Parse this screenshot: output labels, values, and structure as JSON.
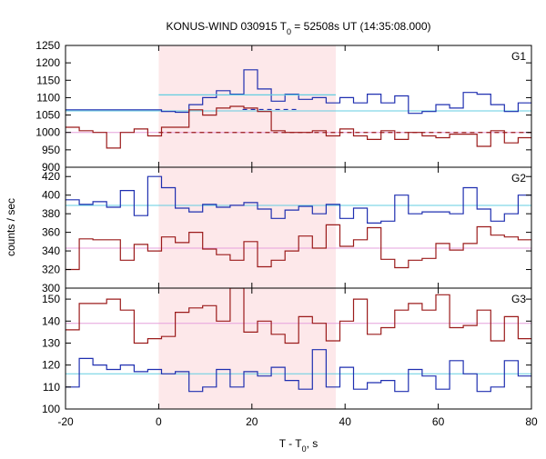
{
  "chart_data": {
    "type": "line",
    "title": {
      "main": "KONUS-WIND 030915 T",
      "sub": "0",
      "rest": " = 52508s UT (14:35:08.000)"
    },
    "xlabel": {
      "main": "T - T",
      "sub": "0",
      "rest": ", s"
    },
    "ylabel": "counts / sec",
    "xlim": [
      -20,
      80
    ],
    "x_ticks": [
      -20,
      0,
      20,
      40,
      60,
      80
    ],
    "bin_width": 2.944,
    "bin_start": -20,
    "shaded_interval": {
      "from": 0,
      "to": 38,
      "color": "#fde8ea"
    },
    "colors": {
      "blue": "#1f2fb0",
      "red": "#9b1b1b",
      "cyan": "#63cde0",
      "pink": "#e6a0dc"
    },
    "panels": [
      {
        "label": "G1",
        "ylim": [
          900,
          1250
        ],
        "y_ticks": [
          900,
          950,
          1000,
          1050,
          1100,
          1150,
          1200,
          1250
        ],
        "series": [
          {
            "color": "blue",
            "values": [
              1065,
              1065,
              1065,
              1065,
              1065,
              1065,
              1065,
              1060,
              1058,
              1080,
              1100,
              1120,
              1110,
              1180,
              1125,
              1090,
              1110,
              1095,
              1100,
              1085,
              1100,
              1085,
              1110,
              1085,
              1105,
              1055,
              1060,
              1080,
              1070,
              1115,
              1110,
              1080,
              1060,
              1085,
              1065
            ]
          },
          {
            "color": "red",
            "values": [
              1015,
              1005,
              1000,
              955,
              1000,
              1010,
              990,
              1015,
              1015,
              1065,
              1050,
              1070,
              1075,
              1070,
              1060,
              1005,
              1000,
              1000,
              1005,
              990,
              1010,
              990,
              980,
              1005,
              980,
              1000,
              990,
              985,
              995,
              995,
              960,
              1005,
              970,
              985,
              990
            ]
          }
        ],
        "bg_levels": [
          {
            "color": "cyan",
            "y": 1062,
            "from": -20,
            "to": 80
          },
          {
            "color": "pink",
            "y": 1000,
            "from": -20,
            "to": 80
          }
        ],
        "fit_levels": [
          {
            "color": "cyan",
            "y": 1108,
            "from": 0,
            "to": 38,
            "dash": false
          },
          {
            "color": "blue",
            "y": 1066,
            "from": 18,
            "to": 30,
            "dash": true
          },
          {
            "color": "red",
            "y": 1000,
            "from": 0,
            "to": 80,
            "dash": true
          }
        ]
      },
      {
        "label": "G2",
        "ylim": [
          300,
          430
        ],
        "y_ticks": [
          300,
          320,
          340,
          360,
          380,
          400,
          420
        ],
        "series": [
          {
            "color": "blue",
            "values": [
              395,
              390,
              393,
              387,
              405,
              378,
              420,
              408,
              386,
              382,
              390,
              387,
              389,
              392,
              385,
              375,
              384,
              388,
              380,
              390,
              375,
              386,
              370,
              372,
              400,
              380,
              382,
              382,
              380,
              408,
              385,
              372,
              380,
              400,
              410,
              405
            ]
          },
          {
            "color": "red",
            "values": [
              320,
              353,
              352,
              352,
              330,
              347,
              340,
              355,
              349,
              360,
              342,
              336,
              330,
              350,
              323,
              330,
              340,
              356,
              343,
              368,
              345,
              352,
              365,
              331,
              322,
              330,
              332,
              348,
              341,
              348,
              366,
              357,
              355,
              352,
              346,
              340
            ]
          }
        ],
        "bg_levels": [
          {
            "color": "cyan",
            "y": 389,
            "from": -20,
            "to": 80
          },
          {
            "color": "pink",
            "y": 343,
            "from": -20,
            "to": 80
          }
        ]
      },
      {
        "label": "G3",
        "ylim": [
          100,
          155
        ],
        "y_ticks": [
          100,
          110,
          120,
          130,
          140,
          150
        ],
        "series": [
          {
            "color": "blue",
            "values": [
              110,
              123,
              120,
              118,
              120,
              117,
              118,
              116,
              117,
              108,
              110,
              118,
              110,
              117,
              115,
              119,
              113,
              109,
              127,
              110,
              119,
              109,
              112,
              113,
              108,
              118,
              115,
              109,
              122,
              116,
              108,
              110,
              122,
              115,
              119,
              118
            ]
          },
          {
            "color": "red",
            "values": [
              136,
              148,
              148,
              150,
              145,
              130,
              132,
              133,
              144,
              146,
              147,
              140,
              155,
              135,
              140,
              134,
              130,
              142,
              139,
              131,
              140,
              150,
              134,
              137,
              145,
              148,
              145,
              152,
              137,
              138,
              145,
              131,
              142,
              132,
              136,
              133,
              140
            ]
          }
        ],
        "bg_levels": [
          {
            "color": "cyan",
            "y": 116,
            "from": -20,
            "to": 80
          },
          {
            "color": "pink",
            "y": 139,
            "from": -20,
            "to": 80
          }
        ]
      }
    ]
  }
}
